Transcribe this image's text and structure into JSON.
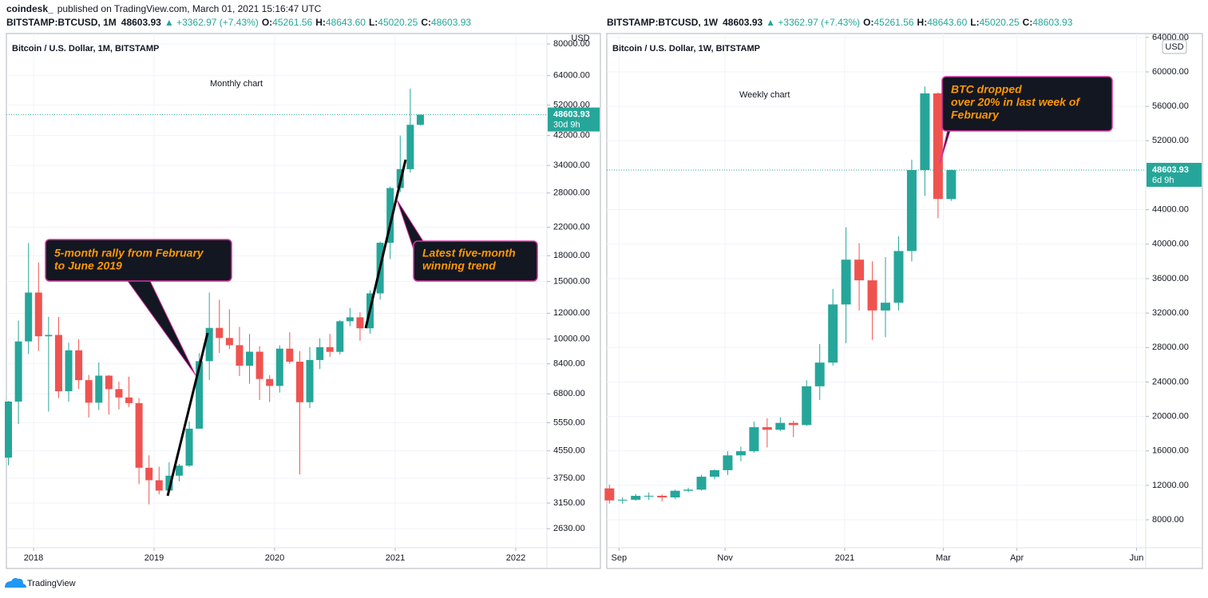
{
  "publisher": "coindesk_",
  "published": "published on TradingView.com, March 01, 2021 15:16:47 UTC",
  "brand": "TradingView",
  "chart_data": [
    {
      "type": "candlestick",
      "title": "Bitcoin / U.S. Dollar, 1M, BITSTAMP",
      "header": {
        "symbol": "BITSTAMP:BTCUSD, 1M",
        "change": "▲ +3362.97 (+7.43%)",
        "fields": [
          {
            "label": "O:",
            "value": "45261.56"
          },
          {
            "label": "H:",
            "value": "48643.60"
          },
          {
            "label": "L:",
            "value": "45020.25"
          },
          {
            "label": "C:",
            "value": "48603.93"
          }
        ]
      },
      "annotation": "Monthly chart",
      "callouts": [
        {
          "lines": [
            "5-month rally from February",
            "to June 2019"
          ]
        },
        {
          "lines": [
            "Latest five-month",
            "winning trend"
          ]
        }
      ],
      "currency": "USD",
      "last_price": 48603.93,
      "countdown": "30d 9h",
      "log_scale": true,
      "grid": true,
      "up_color": "#26a69a",
      "down_color": "#ef5350",
      "xlim": [
        -0.2,
        53.6
      ],
      "xticks": [
        {
          "value": 2.5,
          "label": "2018"
        },
        {
          "value": 14.5,
          "label": "2019"
        },
        {
          "value": 26.5,
          "label": "2020"
        },
        {
          "value": 38.5,
          "label": "2021"
        },
        {
          "value": 50.5,
          "label": "2022"
        }
      ],
      "ylim": [
        2300,
        86100
      ],
      "yticks": [
        {
          "value": 2630,
          "label": "2630.00"
        },
        {
          "value": 3150,
          "label": "3150.00"
        },
        {
          "value": 3750,
          "label": "3750.00"
        },
        {
          "value": 4550,
          "label": "4550.00"
        },
        {
          "value": 5550,
          "label": "5550.00"
        },
        {
          "value": 6800,
          "label": "6800.00"
        },
        {
          "value": 8400,
          "label": "8400.00"
        },
        {
          "value": 10000,
          "label": "10000.00"
        },
        {
          "value": 12000,
          "label": "12000.00"
        },
        {
          "value": 15000,
          "label": "15000.00"
        },
        {
          "value": 18000,
          "label": "18000.00"
        },
        {
          "value": 22000,
          "label": "22000.00"
        },
        {
          "value": 28000,
          "label": "28000.00"
        },
        {
          "value": 34000,
          "label": "34000.00"
        },
        {
          "value": 42000,
          "label": "42000.00"
        },
        {
          "value": 52000,
          "label": "52000.00"
        },
        {
          "value": 64000,
          "label": "64000.00"
        },
        {
          "value": 80000,
          "label": "80000.00"
        }
      ],
      "open": [
        4338,
        6440,
        9838,
        13880,
        10200,
        10300,
        6925,
        9240,
        7490,
        6390,
        7730,
        7030,
        6630,
        6370,
        4040,
        3700,
        3440,
        3820,
        4100,
        5320,
        8560,
        10820,
        10080,
        9580,
        8290,
        9150,
        7550,
        7190,
        9350,
        8530,
        6410,
        8630,
        9450,
        9140,
        11340,
        11660,
        10790,
        13800,
        19710,
        28990,
        33110,
        45260
      ],
      "high": [
        6470,
        11400,
        19666,
        17170,
        11700,
        11700,
        9750,
        9990,
        7770,
        8480,
        7760,
        7410,
        7680,
        6600,
        4410,
        4070,
        4200,
        4150,
        5600,
        9050,
        13880,
        13200,
        12330,
        10900,
        10370,
        9510,
        7750,
        9580,
        10500,
        9190,
        9460,
        10060,
        10380,
        11450,
        12460,
        12070,
        14100,
        19870,
        29300,
        41950,
        58370,
        48640
      ],
      "low": [
        4110,
        5500,
        9000,
        9200,
        6000,
        6600,
        6430,
        7040,
        5760,
        6070,
        5880,
        6100,
        6200,
        3600,
        3120,
        3350,
        3380,
        3670,
        4060,
        5330,
        7500,
        9070,
        9320,
        7710,
        7300,
        6510,
        6420,
        6860,
        8400,
        3850,
        6150,
        8100,
        8820,
        8980,
        10950,
        9880,
        10390,
        13200,
        17580,
        28130,
        32300,
        45020
      ],
      "close": [
        6440,
        9838,
        13880,
        10200,
        10300,
        6925,
        9240,
        7490,
        6390,
        7730,
        7030,
        6630,
        6370,
        4040,
        3700,
        3440,
        3820,
        4100,
        5320,
        8560,
        10820,
        10080,
        9580,
        8290,
        9150,
        7550,
        7190,
        9350,
        8530,
        6410,
        8630,
        9450,
        9140,
        11340,
        11660,
        10790,
        13800,
        19710,
        28990,
        33110,
        45260,
        48603.93
      ]
    },
    {
      "type": "candlestick",
      "title": "Bitcoin / U.S. Dollar, 1W, BITSTAMP",
      "header": {
        "symbol": "BITSTAMP:BTCUSD, 1W",
        "change": "▲ +3362.97 (+7.43%)",
        "fields": [
          {
            "label": "O:",
            "value": "45261.56"
          },
          {
            "label": "H:",
            "value": "48643.60"
          },
          {
            "label": "L:",
            "value": "45020.25"
          },
          {
            "label": "C:",
            "value": "48603.93"
          }
        ]
      },
      "annotation": "Weekly chart",
      "callouts": [
        {
          "lines": [
            "BTC dropped",
            "over 20% in last week of",
            "February"
          ]
        }
      ],
      "currency": "USD",
      "last_price": 48603.93,
      "countdown": "6d 9h",
      "log_scale": false,
      "grid": true,
      "up_color": "#26a69a",
      "down_color": "#ef5350",
      "xlim": [
        -0.2,
        40.8
      ],
      "xticks": [
        {
          "value": 0.73,
          "label": "Sep"
        },
        {
          "value": 8.8,
          "label": "Nov"
        },
        {
          "value": 17.9,
          "label": "2021"
        },
        {
          "value": 25.4,
          "label": "Mar"
        },
        {
          "value": 31,
          "label": "Apr"
        },
        {
          "value": 40.1,
          "label": "Jun"
        }
      ],
      "ylim": [
        4760,
        64450
      ],
      "yticks": [
        {
          "value": 8000,
          "label": "8000.00"
        },
        {
          "value": 12000,
          "label": "12000.00"
        },
        {
          "value": 16000,
          "label": "16000.00"
        },
        {
          "value": 20000,
          "label": "20000.00"
        },
        {
          "value": 24000,
          "label": "24000.00"
        },
        {
          "value": 28000,
          "label": "28000.00"
        },
        {
          "value": 32000,
          "label": "32000.00"
        },
        {
          "value": 36000,
          "label": "36000.00"
        },
        {
          "value": 40000,
          "label": "40000.00"
        },
        {
          "value": 44000,
          "label": "44000.00"
        },
        {
          "value": 52000,
          "label": "52000.00"
        },
        {
          "value": 56000,
          "label": "56000.00"
        },
        {
          "value": 60000,
          "label": "60000.00"
        },
        {
          "value": 64000,
          "label": "64000.00"
        }
      ],
      "open": [
        11650,
        10250,
        10330,
        10780,
        10790,
        10600,
        11370,
        11500,
        13000,
        13760,
        15480,
        15960,
        18750,
        18450,
        19250,
        19000,
        23500,
        26250,
        33000,
        38200,
        35800,
        32300,
        33200,
        39200,
        48600,
        57500,
        45240
      ],
      "high": [
        12090,
        10600,
        11000,
        11170,
        10950,
        11500,
        11730,
        13230,
        13850,
        15960,
        16500,
        19400,
        19800,
        19900,
        19500,
        24200,
        28400,
        34800,
        41950,
        40100,
        38000,
        38500,
        40900,
        49800,
        58300,
        57600,
        48640
      ],
      "low": [
        9870,
        9850,
        10200,
        10300,
        10150,
        10400,
        11200,
        11400,
        12700,
        13200,
        14800,
        15800,
        16400,
        18300,
        17600,
        18900,
        21900,
        25900,
        28500,
        32300,
        28900,
        29200,
        32300,
        38000,
        45600,
        43000,
        45020
      ],
      "close": [
        10250,
        10330,
        10780,
        10790,
        10600,
        11370,
        11500,
        13000,
        13760,
        15480,
        15960,
        18750,
        18450,
        19250,
        19000,
        23500,
        26250,
        33000,
        38200,
        35800,
        32300,
        33200,
        39200,
        48600,
        57500,
        45240,
        48603.93
      ]
    }
  ]
}
